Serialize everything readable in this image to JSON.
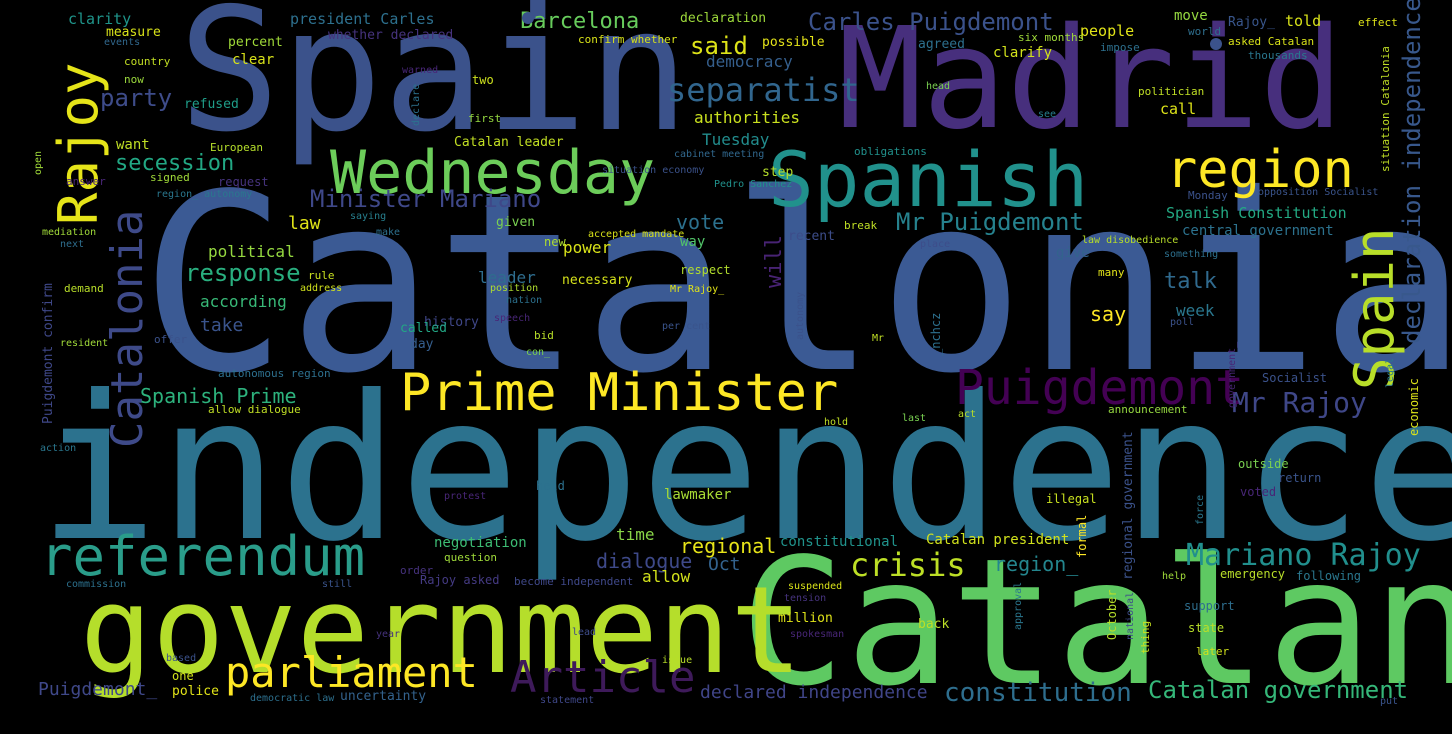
{
  "words": [
    {
      "id": "catalonia",
      "text": "Catalonia",
      "color": "#3b5a94"
    },
    {
      "id": "independence",
      "text": "independence",
      "color": "#2c728e"
    },
    {
      "id": "spain",
      "text": "Spain",
      "color": "#3b528b"
    },
    {
      "id": "madrid",
      "text": "Madrid",
      "color": "#472f7d"
    },
    {
      "id": "catalan",
      "text": "Catalan",
      "color": "#5ec962"
    },
    {
      "id": "government",
      "text": "government",
      "color": "#b5de2b"
    },
    {
      "id": "spanish",
      "text": "Spanish",
      "color": "#21918c"
    },
    {
      "id": "wednesday",
      "text": "Wednesday",
      "color": "#6ccd5a"
    },
    {
      "id": "region",
      "text": "region",
      "color": "#fde725"
    },
    {
      "id": "prime-minister",
      "text": "Prime Minister",
      "color": "#fde725"
    },
    {
      "id": "referendum",
      "text": "referendum",
      "color": "#2a9d8a"
    },
    {
      "id": "parliament",
      "text": "parliament",
      "color": "#fde725"
    },
    {
      "id": "article",
      "text": "Article",
      "color": "#3e1a5a"
    },
    {
      "id": "puigdemont",
      "text": "Puigdemont",
      "color": "#440154"
    },
    {
      "id": "rajoy",
      "text": "Rajoy",
      "color": "#e5e419"
    },
    {
      "id": "spain-vertical",
      "text": "Spain",
      "color": "#b8de29"
    },
    {
      "id": "catalonia-vertical",
      "text": "Catalonia",
      "color": "#3e4a89"
    },
    {
      "id": "declaration-independence",
      "text": "declaration independence",
      "color": "#38588c"
    },
    {
      "id": "separatist",
      "text": "separatist",
      "color": "#31668e"
    },
    {
      "id": "mariano-rajoy",
      "text": "Mariano Rajoy",
      "color": "#218f8d"
    },
    {
      "id": "crisis",
      "text": "crisis",
      "color": "#bddf26"
    },
    {
      "id": "mr-rajoy",
      "text": "Mr Rajoy",
      "color": "#3f4788"
    },
    {
      "id": "constitution",
      "text": "constitution",
      "color": "#2e6e8e"
    },
    {
      "id": "catalan-government",
      "text": "Catalan government",
      "color": "#35b779"
    },
    {
      "id": "mr-puigdemont",
      "text": "Mr Puigdemont",
      "color": "#26828e"
    },
    {
      "id": "minister-mariano",
      "text": "Minister Mariano",
      "color": "#3f4889"
    },
    {
      "id": "carles-puigdemont",
      "text": "Carles Puigdemont",
      "color": "#3b528b"
    },
    {
      "id": "barcelona",
      "text": "Barcelona",
      "color": "#67cc5c"
    },
    {
      "id": "said",
      "text": "said",
      "color": "#dde318"
    },
    {
      "id": "party",
      "text": "party",
      "color": "#3e4c8a"
    },
    {
      "id": "secession",
      "text": "secession",
      "color": "#22a884"
    },
    {
      "id": "response",
      "text": "response",
      "color": "#29af7f"
    },
    {
      "id": "spanish-prime",
      "text": "Spanish Prime",
      "color": "#2db27d"
    },
    {
      "id": "declared-independence",
      "text": "declared independence",
      "color": "#404588"
    },
    {
      "id": "dialogue",
      "text": "dialogue",
      "color": "#3e4989"
    },
    {
      "id": "regional",
      "text": "regional",
      "color": "#e7e419"
    },
    {
      "id": "region-2",
      "text": "region_",
      "color": "#24868e"
    },
    {
      "id": "puigdemont-2",
      "text": "Puigdemont_",
      "color": "#3f4889"
    },
    {
      "id": "democracy",
      "text": "democracy",
      "color": "#355f8d"
    },
    {
      "id": "authorities",
      "text": "authorities",
      "color": "#cae11f"
    },
    {
      "id": "tuesday",
      "text": "Tuesday",
      "color": "#228c8d"
    },
    {
      "id": "vote",
      "text": "vote",
      "color": "#2c718e"
    },
    {
      "id": "will",
      "text": "will",
      "color": "#482374"
    },
    {
      "id": "talk",
      "text": "talk",
      "color": "#306a8e"
    },
    {
      "id": "say",
      "text": "say",
      "color": "#fde725"
    },
    {
      "id": "week",
      "text": "week",
      "color": "#2a778e"
    },
    {
      "id": "spanish-constitution",
      "text": "Spanish Constitution",
      "color": "#23a983"
    },
    {
      "id": "central-government",
      "text": "central government",
      "color": "#2c728e"
    },
    {
      "id": "leader",
      "text": "leader",
      "color": "#2e6d8e"
    },
    {
      "id": "law",
      "text": "law",
      "color": "#dfe318"
    },
    {
      "id": "political",
      "text": "political",
      "color": "#95d840"
    },
    {
      "id": "according",
      "text": "according",
      "color": "#38b977"
    },
    {
      "id": "take",
      "text": "take",
      "color": "#3a548c"
    },
    {
      "id": "power",
      "text": "power",
      "color": "#d8e219"
    },
    {
      "id": "allow",
      "text": "allow",
      "color": "#d2e21b"
    },
    {
      "id": "oct",
      "text": "Oct",
      "color": "#33628d"
    },
    {
      "id": "time",
      "text": "time",
      "color": "#89d548"
    },
    {
      "id": "negotiation",
      "text": "negotiation",
      "color": "#3dbc74"
    },
    {
      "id": "lawmaker",
      "text": "lawmaker",
      "color": "#a8db34"
    },
    {
      "id": "catalan-president",
      "text": "Catalan president",
      "color": "#d0e11c"
    },
    {
      "id": "constitutional",
      "text": "constitutional",
      "color": "#20938c"
    },
    {
      "id": "catalan-leader",
      "text": "Catalan leader",
      "color": "#c2df23"
    },
    {
      "id": "clarity",
      "text": "clarity",
      "color": "#1f958b"
    },
    {
      "id": "measure",
      "text": "measure",
      "color": "#d8e219"
    },
    {
      "id": "president-carles",
      "text": "president Carles",
      "color": "#2d708e"
    },
    {
      "id": "whether-declared",
      "text": "whether declared",
      "color": "#46337e"
    },
    {
      "id": "declaration",
      "text": "declaration",
      "color": "#9dd93b"
    },
    {
      "id": "people",
      "text": "people",
      "color": "#e2e418"
    },
    {
      "id": "move",
      "text": "move",
      "color": "#95d840"
    },
    {
      "id": "rajoy-2",
      "text": "Rajoy_",
      "color": "#39568c"
    },
    {
      "id": "told",
      "text": "told",
      "color": "#d8e219"
    },
    {
      "id": "possible",
      "text": "possible",
      "color": "#e5e419"
    },
    {
      "id": "agreed",
      "text": "agreed",
      "color": "#2d708e"
    },
    {
      "id": "clarify",
      "text": "clarify",
      "color": "#d2e21b"
    },
    {
      "id": "percent",
      "text": "percent",
      "color": "#a0da39"
    },
    {
      "id": "clear",
      "text": "clear",
      "color": "#d8e219"
    },
    {
      "id": "refused",
      "text": "refused",
      "color": "#1f9e89"
    },
    {
      "id": "want",
      "text": "want",
      "color": "#c0df25"
    },
    {
      "id": "call",
      "text": "call",
      "color": "#dde318"
    },
    {
      "id": "history",
      "text": "history",
      "color": "#3f4788"
    },
    {
      "id": "called",
      "text": "called",
      "color": "#22a785"
    },
    {
      "id": "day",
      "text": "day",
      "color": "#355e8d"
    },
    {
      "id": "necessary",
      "text": "necessary",
      "color": "#d5e21a"
    },
    {
      "id": "way",
      "text": "way",
      "color": "#52c569"
    },
    {
      "id": "give",
      "text": "give",
      "color": "#33638d"
    },
    {
      "id": "recent",
      "text": "recent",
      "color": "#3d4d8a"
    },
    {
      "id": "new",
      "text": "new",
      "color": "#addc30"
    },
    {
      "id": "given",
      "text": "given",
      "color": "#7ad151"
    },
    {
      "id": "step",
      "text": "step",
      "color": "#b5de2b"
    },
    {
      "id": "respect",
      "text": "respect",
      "color": "#b2dd2d"
    },
    {
      "id": "million",
      "text": "million",
      "color": "#dfe318"
    },
    {
      "id": "back",
      "text": "back",
      "color": "#bddf26"
    },
    {
      "id": "support",
      "text": "support",
      "color": "#2e6e8e"
    },
    {
      "id": "state",
      "text": "state",
      "color": "#b8de29"
    },
    {
      "id": "outside",
      "text": "outside",
      "color": "#7ad151"
    },
    {
      "id": "return",
      "text": "return",
      "color": "#3a548c"
    },
    {
      "id": "voted",
      "text": "voted",
      "color": "#482677"
    },
    {
      "id": "illegal",
      "text": "illegal",
      "color": "#c8e020"
    },
    {
      "id": "announcement",
      "text": "announcement",
      "color": "#95d840"
    },
    {
      "id": "socialist",
      "text": "Socialist",
      "color": "#3b528b"
    },
    {
      "id": "economic",
      "text": "economic",
      "color": "#dce319"
    },
    {
      "id": "emergency",
      "text": "emergency",
      "color": "#b8de29"
    },
    {
      "id": "following",
      "text": "following",
      "color": "#2a778e"
    },
    {
      "id": "later",
      "text": "later",
      "color": "#d2e21b"
    },
    {
      "id": "police",
      "text": "police",
      "color": "#e2e418"
    },
    {
      "id": "uncertainty",
      "text": "uncertainty",
      "color": "#33628d"
    },
    {
      "id": "question",
      "text": "question",
      "color": "#9fda3a"
    },
    {
      "id": "rajoy-asked",
      "text": "Rajoy asked",
      "color": "#443a83"
    },
    {
      "id": "become-independent",
      "text": "become independent",
      "color": "#3f4889"
    },
    {
      "id": "order",
      "text": "order",
      "color": "#46327e"
    },
    {
      "id": "held",
      "text": "held",
      "color": "#2c718e"
    },
    {
      "id": "one",
      "text": "one",
      "color": "#d0e11c"
    },
    {
      "id": "country",
      "text": "country",
      "color": "#c2df23"
    },
    {
      "id": "now",
      "text": "now",
      "color": "#9bd93c"
    },
    {
      "id": "events",
      "text": "events",
      "color": "#31688e"
    },
    {
      "id": "two",
      "text": "two",
      "color": "#cde11d"
    },
    {
      "id": "first",
      "text": "first",
      "color": "#95d840"
    },
    {
      "id": "confirm-whether",
      "text": "confirm whether",
      "color": "#d8e219"
    },
    {
      "id": "six-months",
      "text": "six months",
      "color": "#a0da39"
    },
    {
      "id": "world",
      "text": "world",
      "color": "#2e6f8e"
    },
    {
      "id": "effect",
      "text": "effect",
      "color": "#dde318"
    },
    {
      "id": "asked-catalan",
      "text": "asked Catalan",
      "color": "#d8e219"
    },
    {
      "id": "thousands",
      "text": "thousands",
      "color": "#2a778e"
    },
    {
      "id": "impose",
      "text": "impose",
      "color": "#2d708e"
    },
    {
      "id": "head",
      "text": "head",
      "color": "#7ad151"
    },
    {
      "id": "politician",
      "text": "politician",
      "color": "#c0df25"
    },
    {
      "id": "see",
      "text": "see",
      "color": "#277f8e"
    },
    {
      "id": "obligations",
      "text": "obligations",
      "color": "#21918c"
    },
    {
      "id": "cabinet-meeting",
      "text": "cabinet meeting",
      "color": "#31688e"
    },
    {
      "id": "pedro-sanchez",
      "text": "Pedro Sanchez",
      "color": "#21918c"
    },
    {
      "id": "monday",
      "text": "Monday",
      "color": "#3b528b"
    },
    {
      "id": "opposition-socialist",
      "text": "opposition Socialist",
      "color": "#3a548c"
    },
    {
      "id": "something",
      "text": "something",
      "color": "#2d708e"
    },
    {
      "id": "law-disobedience",
      "text": "law disobedience",
      "color": "#b8de29"
    },
    {
      "id": "break",
      "text": "break",
      "color": "#c0df25"
    },
    {
      "id": "place",
      "text": "place",
      "color": "#3d4d8a"
    },
    {
      "id": "many",
      "text": "many",
      "color": "#e2e418"
    },
    {
      "id": "poll",
      "text": "poll",
      "color": "#3b528b"
    },
    {
      "id": "mr-rajoy-2",
      "text": "Mr Rajoy_",
      "color": "#e2e418"
    },
    {
      "id": "nation",
      "text": "nation",
      "color": "#2c718e"
    },
    {
      "id": "position",
      "text": "position",
      "color": "#addc30"
    },
    {
      "id": "speech",
      "text": "speech",
      "color": "#482677"
    },
    {
      "id": "bid",
      "text": "bid",
      "color": "#b8de29"
    },
    {
      "id": "con",
      "text": "con_",
      "color": "#7ad151"
    },
    {
      "id": "per-cent",
      "text": "per cent",
      "color": "#3a548c"
    },
    {
      "id": "mr",
      "text": "Mr",
      "color": "#c0df25"
    },
    {
      "id": "situation-economy",
      "text": "situation economy",
      "color": "#3b528b"
    },
    {
      "id": "accepted-mandate",
      "text": "accepted mandate",
      "color": "#d8e219"
    },
    {
      "id": "signed",
      "text": "signed",
      "color": "#a0da39"
    },
    {
      "id": "european",
      "text": "European",
      "color": "#b5de2b"
    },
    {
      "id": "answer",
      "text": "answer",
      "color": "#482677"
    },
    {
      "id": "request",
      "text": "request",
      "color": "#46337e"
    },
    {
      "id": "region-autonomy",
      "text": "region_ autonomy",
      "color": "#2a778e"
    },
    {
      "id": "mediation",
      "text": "mediation",
      "color": "#a0da39"
    },
    {
      "id": "next",
      "text": "next",
      "color": "#2e6e8e"
    },
    {
      "id": "saying",
      "text": "saying",
      "color": "#277f8e"
    },
    {
      "id": "make",
      "text": "make",
      "color": "#2d708e"
    },
    {
      "id": "rule",
      "text": "rule",
      "color": "#c8e020"
    },
    {
      "id": "address",
      "text": "address",
      "color": "#d0e11c"
    },
    {
      "id": "demand",
      "text": "demand",
      "color": "#b8de29"
    },
    {
      "id": "resident",
      "text": "resident",
      "color": "#a0da39"
    },
    {
      "id": "offer",
      "text": "offer",
      "color": "#3b528b"
    },
    {
      "id": "autonomous-region",
      "text": "autonomous region",
      "color": "#2d708e"
    },
    {
      "id": "allow-dialogue",
      "text": "allow dialogue",
      "color": "#c0df25"
    },
    {
      "id": "action",
      "text": "action",
      "color": "#2a778e"
    },
    {
      "id": "protest",
      "text": "protest",
      "color": "#3d4d8a"
    },
    {
      "id": "commission",
      "text": "commission",
      "color": "#482677"
    },
    {
      "id": "still",
      "text": "still",
      "color": "#2c718e"
    },
    {
      "id": "based",
      "text": "based",
      "color": "#3a548c"
    },
    {
      "id": "year",
      "text": "year",
      "color": "#3b528b"
    },
    {
      "id": "lead",
      "text": "lead",
      "color": "#46337e"
    },
    {
      "id": "issue",
      "text": "issue",
      "color": "#3e4c8a"
    },
    {
      "id": "democratic-law",
      "text": "democratic law",
      "color": "#b8de29"
    },
    {
      "id": "statement",
      "text": "statement",
      "color": "#2d708e"
    },
    {
      "id": "tension",
      "text": "tension",
      "color": "#3f4889"
    },
    {
      "id": "spokesman",
      "text": "spokesman",
      "color": "#46337e"
    },
    {
      "id": "suspended",
      "text": "suspended",
      "color": "#482677"
    },
    {
      "id": "help",
      "text": "help",
      "color": "#d8e219"
    },
    {
      "id": "put",
      "text": "put",
      "color": "#a0da39"
    },
    {
      "id": "last",
      "text": "last",
      "color": "#3a548c"
    },
    {
      "id": "hold",
      "text": "hold",
      "color": "#7ad151"
    },
    {
      "id": "act",
      "text": "act",
      "color": "#c0df25"
    },
    {
      "id": "warned",
      "text": "warned",
      "color": "#b8de29"
    },
    {
      "id": "nchcz",
      "text": "_nchcz",
      "color": "#482677"
    },
    {
      "id": "autonomy",
      "text": "autonomy",
      "color": "#2d708e"
    },
    {
      "id": "declare",
      "text": "declare",
      "color": "#3b528b"
    },
    {
      "id": "open",
      "text": "open",
      "color": "#2c718e"
    },
    {
      "id": "puigdemont-confirm",
      "text": "Puigdemont confirm",
      "color": "#a0da39"
    },
    {
      "id": "regional-government",
      "text": "regional government",
      "color": "#3f4889"
    },
    {
      "id": "october",
      "text": "October",
      "color": "#3b528b"
    },
    {
      "id": "national",
      "text": "national",
      "color": "#b5de2b"
    },
    {
      "id": "thing",
      "text": "thing",
      "color": "#3d4d8a"
    },
    {
      "id": "formal",
      "text": "formal",
      "color": "#c8e020"
    },
    {
      "id": "approval",
      "text": "approval",
      "color": "#fde725"
    },
    {
      "id": "legal",
      "text": "legal",
      "color": "#2a778e"
    },
    {
      "id": "government-2",
      "text": "government_",
      "color": "#2a778e"
    },
    {
      "id": "force",
      "text": "force",
      "color": "#482677"
    },
    {
      "id": "situation-catalonia",
      "text": "situation Catalonia",
      "color": "#2a778e"
    },
    {
      "id": "declare-independence",
      "text": "declare independence",
      "color": "#c0df25"
    }
  ]
}
